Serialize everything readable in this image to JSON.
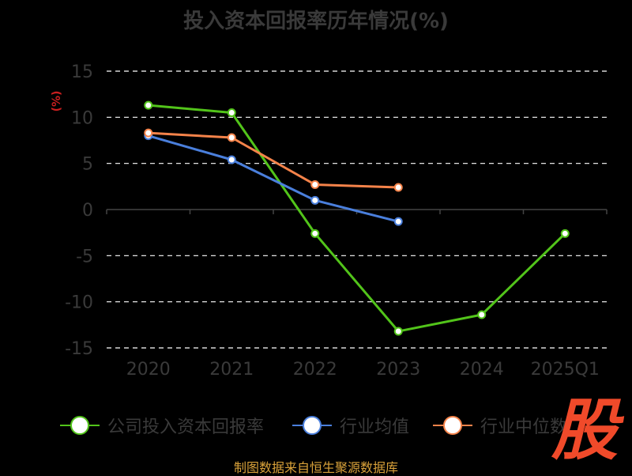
{
  "chart_data": {
    "type": "line",
    "title": "投入资本回报率历年情况(%)",
    "ylabel": "(%)",
    "categories": [
      "2020",
      "2021",
      "2022",
      "2023",
      "2024",
      "2025Q1"
    ],
    "ylim": [
      -15,
      15
    ],
    "yticks": [
      15,
      10,
      5,
      0,
      -5,
      -10,
      -15
    ],
    "grid": true,
    "legend_position": "bottom",
    "series": [
      {
        "name": "公司投入资本回报率",
        "color": "#52c41a",
        "values": [
          11.3,
          10.5,
          -2.6,
          -13.2,
          -11.4,
          -2.6
        ]
      },
      {
        "name": "行业均值",
        "color": "#4a7fdc",
        "values": [
          8.0,
          5.4,
          1.0,
          -1.3,
          null,
          null
        ]
      },
      {
        "name": "行业中位数",
        "color": "#f5834a",
        "values": [
          8.3,
          7.8,
          2.7,
          2.4,
          null,
          null
        ]
      }
    ]
  },
  "footer": {
    "source": "制图数据来自恒生聚源数据库",
    "logo_text": "股"
  }
}
